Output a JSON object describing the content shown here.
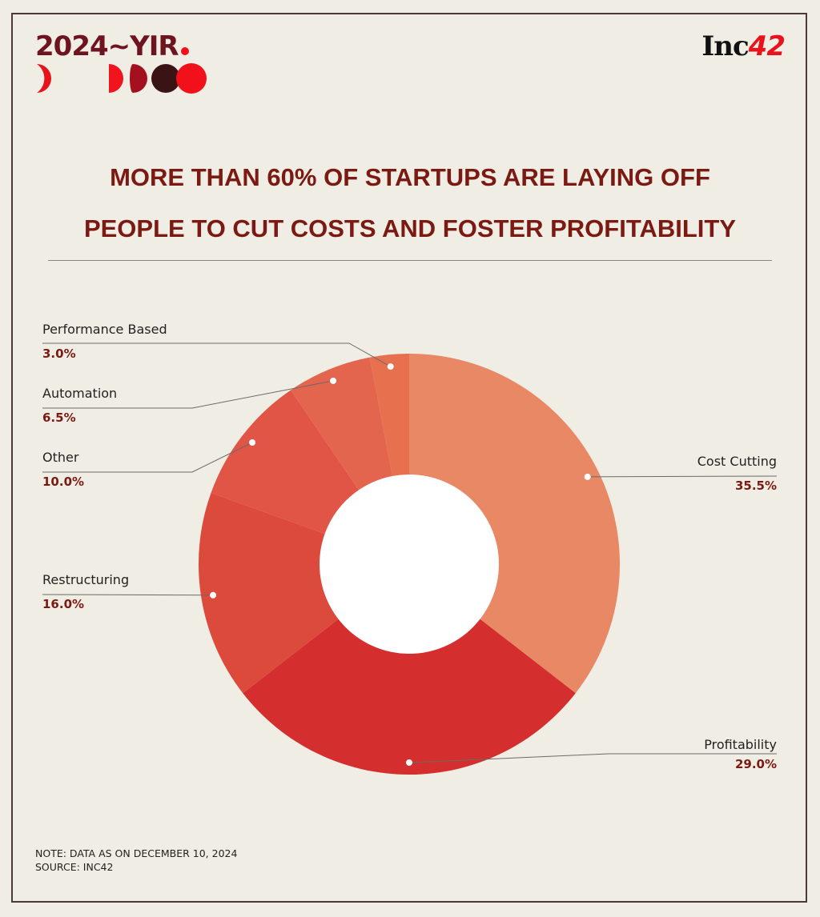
{
  "brand": {
    "yir_logo": "2024~YIR",
    "publisher_logo_text": "Inc",
    "publisher_logo_number": "42"
  },
  "title": {
    "line1": "MORE THAN 60% OF STARTUPS ARE LAYING OFF",
    "line2": "PEOPLE TO CUT COSTS AND FOSTER PROFITABILITY"
  },
  "chart_data": {
    "type": "pie",
    "donut": true,
    "title": "",
    "categories": [
      "Cost Cutting",
      "Profitability",
      "Restructuring",
      "Other",
      "Automation",
      "Performance Based"
    ],
    "values": [
      35.5,
      29.0,
      16.0,
      10.0,
      6.5,
      3.0
    ],
    "value_labels": [
      "35.5%",
      "29.0%",
      "16.0%",
      "10.0%",
      "6.5%",
      "3.0%"
    ],
    "colors": [
      "#E98864",
      "#D42E2E",
      "#DC4A3C",
      "#E05545",
      "#E4654E",
      "#E7704F"
    ],
    "start": "top",
    "direction": "clockwise",
    "legend": "none"
  },
  "footer": {
    "note": "NOTE: DATA AS ON DECEMBER 10, 2024",
    "source": "SOURCE: INC42"
  }
}
